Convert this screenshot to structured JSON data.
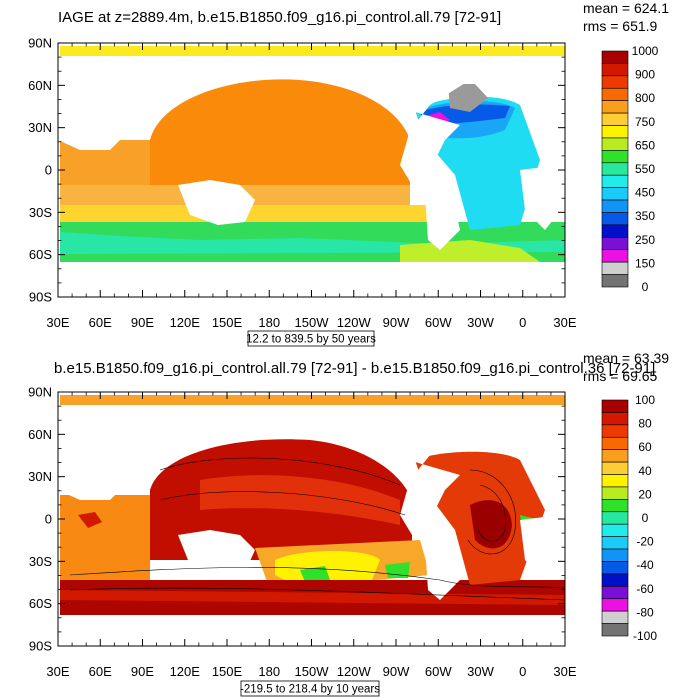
{
  "panels": [
    {
      "title": "IAGE at z=2889.4m, b.e15.B1850.f09_g16.pi_control.all.79 [72-91]",
      "mean": "mean = 624.1",
      "rms": "rms = 651.9",
      "subtitle": "12.2 to 839.5 by 50 years",
      "lat_ticks": [
        "90N",
        "60N",
        "30N",
        "0",
        "30S",
        "60S",
        "90S"
      ],
      "lon_ticks": [
        "30E",
        "60E",
        "90E",
        "120E",
        "150E",
        "180",
        "150W",
        "120W",
        "90W",
        "60W",
        "30W",
        "0",
        "30E"
      ],
      "colorbar": {
        "labels": [
          "1000",
          "900",
          "800",
          "750",
          "650",
          "550",
          "450",
          "350",
          "250",
          "150",
          "0"
        ],
        "colors": [
          "#a80000",
          "#d21900",
          "#ee3a00",
          "#f86a00",
          "#f89f1e",
          "#fccd35",
          "#fff200",
          "#b9ec1e",
          "#2fe12a",
          "#27e89c",
          "#20ecec",
          "#1acaf9",
          "#1094f6",
          "#0759e8",
          "#0010c8",
          "#7a10d6",
          "#ea11e2",
          "#cfcfcf",
          "#737373"
        ]
      },
      "map_colors": {
        "ocean": "#f59a1e",
        "land": "#ffffff",
        "northern_arctic": "#fdea1e",
        "southern_belt": "#29e36f",
        "atlantic": "#26cdf2",
        "north_atlantic": "#3a4cf0",
        "gray": "#9a9a9a"
      }
    },
    {
      "title": "b.e15.B1850.f09_g16.pi_control.all.79 [72-91] - b.e15.B1850.f09_g16.pi_control.36 [72-91]",
      "mean": "mean = 63.39",
      "rms": "rms = 69.65",
      "subtitle": "-219.5 to 218.4 by 10 years",
      "lat_ticks": [
        "90N",
        "60N",
        "30N",
        "0",
        "30S",
        "60S",
        "90S"
      ],
      "lon_ticks": [
        "30E",
        "60E",
        "90E",
        "120E",
        "150E",
        "180",
        "150W",
        "120W",
        "90W",
        "60W",
        "30W",
        "0",
        "30E"
      ],
      "colorbar": {
        "labels": [
          "100",
          "80",
          "60",
          "40",
          "20",
          "0",
          "-20",
          "-40",
          "-60",
          "-80",
          "-100"
        ],
        "colors": [
          "#a80000",
          "#d21900",
          "#ee3a00",
          "#f86a00",
          "#f89f1e",
          "#fccd35",
          "#fff200",
          "#b9ec1e",
          "#2fe12a",
          "#27e89c",
          "#20ecec",
          "#1acaf9",
          "#1094f6",
          "#0759e8",
          "#0010c8",
          "#7a10d6",
          "#ea11e2",
          "#cfcfcf",
          "#737373"
        ]
      },
      "map_colors": {
        "ocean": "#d21900",
        "land": "#ffffff",
        "pacific_core": "#b80b00",
        "subtropics": "#f89f1e",
        "southern": "#fff200",
        "green_patch": "#2fe12a",
        "atlantic": "#ee3a00"
      }
    }
  ]
}
